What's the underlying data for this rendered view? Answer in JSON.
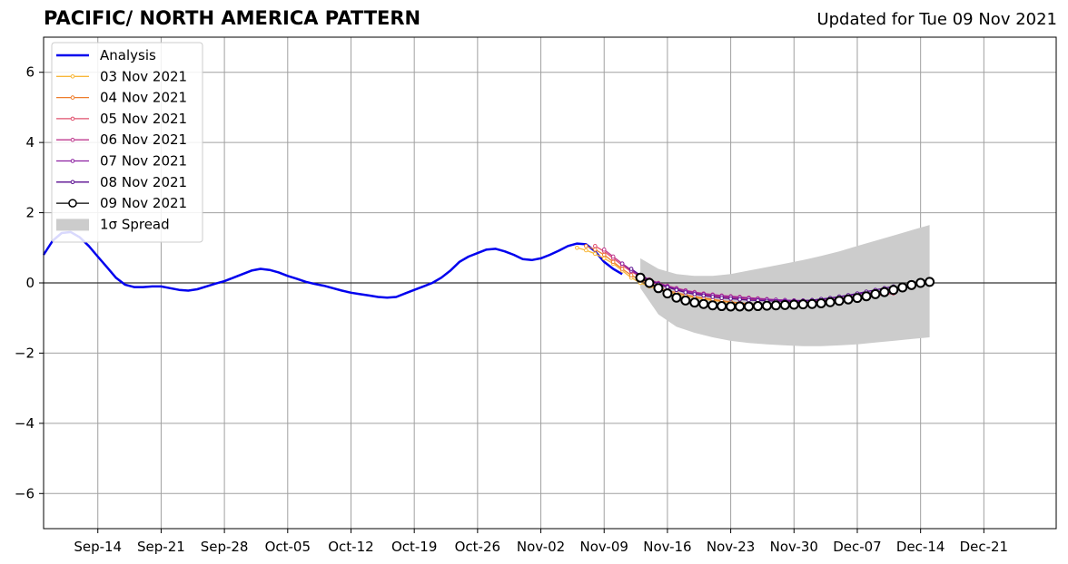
{
  "header": {
    "title": "PACIFIC/ NORTH AMERICA PATTERN",
    "updated": "Updated for Tue 09 Nov 2021"
  },
  "chart_data": {
    "type": "line",
    "title": "PACIFIC/ NORTH AMERICA PATTERN",
    "xlabel": "",
    "ylabel": "",
    "xlim": [
      "2021-09-08",
      "2021-12-29"
    ],
    "ylim": [
      -7,
      7
    ],
    "grid": true,
    "legend_position": "top-left",
    "x_tick_labels": [
      {
        "date": "2021-09-14",
        "label": "Sep-14"
      },
      {
        "date": "2021-09-21",
        "label": "Sep-21"
      },
      {
        "date": "2021-09-28",
        "label": "Sep-28"
      },
      {
        "date": "2021-10-05",
        "label": "Oct-05"
      },
      {
        "date": "2021-10-12",
        "label": "Oct-12"
      },
      {
        "date": "2021-10-19",
        "label": "Oct-19"
      },
      {
        "date": "2021-10-26",
        "label": "Oct-26"
      },
      {
        "date": "2021-11-02",
        "label": "Nov-02"
      },
      {
        "date": "2021-11-09",
        "label": "Nov-09"
      },
      {
        "date": "2021-11-16",
        "label": "Nov-16"
      },
      {
        "date": "2021-11-23",
        "label": "Nov-23"
      },
      {
        "date": "2021-11-30",
        "label": "Nov-30"
      },
      {
        "date": "2021-12-07",
        "label": "Dec-07"
      },
      {
        "date": "2021-12-14",
        "label": "Dec-14"
      },
      {
        "date": "2021-12-21",
        "label": "Dec-21"
      }
    ],
    "y_ticks": [
      6,
      4,
      2,
      0,
      -2,
      -4,
      -6
    ],
    "y_tick_labels": [
      "6",
      "4",
      "2",
      "0",
      "−2",
      "−4",
      "−6"
    ],
    "analysis": {
      "name": "Analysis",
      "color": "#0000ee",
      "points": [
        [
          "2021-09-08",
          0.8
        ],
        [
          "2021-09-09",
          1.2
        ],
        [
          "2021-09-10",
          1.42
        ],
        [
          "2021-09-11",
          1.45
        ],
        [
          "2021-09-12",
          1.3
        ],
        [
          "2021-09-13",
          1.05
        ],
        [
          "2021-09-14",
          0.75
        ],
        [
          "2021-09-15",
          0.45
        ],
        [
          "2021-09-16",
          0.15
        ],
        [
          "2021-09-17",
          -0.05
        ],
        [
          "2021-09-18",
          -0.12
        ],
        [
          "2021-09-19",
          -0.12
        ],
        [
          "2021-09-20",
          -0.1
        ],
        [
          "2021-09-21",
          -0.1
        ],
        [
          "2021-09-22",
          -0.15
        ],
        [
          "2021-09-23",
          -0.2
        ],
        [
          "2021-09-24",
          -0.22
        ],
        [
          "2021-09-25",
          -0.18
        ],
        [
          "2021-09-26",
          -0.1
        ],
        [
          "2021-09-27",
          -0.02
        ],
        [
          "2021-09-28",
          0.05
        ],
        [
          "2021-09-29",
          0.15
        ],
        [
          "2021-09-30",
          0.25
        ],
        [
          "2021-10-01",
          0.35
        ],
        [
          "2021-10-02",
          0.4
        ],
        [
          "2021-10-03",
          0.37
        ],
        [
          "2021-10-04",
          0.3
        ],
        [
          "2021-10-05",
          0.2
        ],
        [
          "2021-10-06",
          0.12
        ],
        [
          "2021-10-07",
          0.03
        ],
        [
          "2021-10-08",
          -0.03
        ],
        [
          "2021-10-09",
          -0.08
        ],
        [
          "2021-10-10",
          -0.15
        ],
        [
          "2021-10-11",
          -0.22
        ],
        [
          "2021-10-12",
          -0.28
        ],
        [
          "2021-10-13",
          -0.32
        ],
        [
          "2021-10-14",
          -0.36
        ],
        [
          "2021-10-15",
          -0.4
        ],
        [
          "2021-10-16",
          -0.42
        ],
        [
          "2021-10-17",
          -0.4
        ],
        [
          "2021-10-18",
          -0.3
        ],
        [
          "2021-10-19",
          -0.2
        ],
        [
          "2021-10-20",
          -0.1
        ],
        [
          "2021-10-21",
          0.0
        ],
        [
          "2021-10-22",
          0.15
        ],
        [
          "2021-10-23",
          0.35
        ],
        [
          "2021-10-24",
          0.6
        ],
        [
          "2021-10-25",
          0.75
        ],
        [
          "2021-10-26",
          0.85
        ],
        [
          "2021-10-27",
          0.95
        ],
        [
          "2021-10-28",
          0.97
        ],
        [
          "2021-10-29",
          0.9
        ],
        [
          "2021-10-30",
          0.8
        ],
        [
          "2021-10-31",
          0.68
        ],
        [
          "2021-11-01",
          0.65
        ],
        [
          "2021-11-02",
          0.7
        ],
        [
          "2021-11-03",
          0.8
        ],
        [
          "2021-11-04",
          0.92
        ],
        [
          "2021-11-05",
          1.05
        ],
        [
          "2021-11-06",
          1.12
        ],
        [
          "2021-11-07",
          1.1
        ],
        [
          "2021-11-08",
          0.9
        ],
        [
          "2021-11-09",
          0.6
        ],
        [
          "2021-11-10",
          0.4
        ],
        [
          "2021-11-11",
          0.25
        ]
      ]
    },
    "forecasts": [
      {
        "name": "03 Nov 2021",
        "color": "#f8b739",
        "start": "2021-11-06",
        "values": [
          1.0,
          0.93,
          0.83,
          0.7,
          0.55,
          0.35,
          0.15,
          0.0,
          -0.1,
          -0.18,
          -0.25,
          -0.32,
          -0.38,
          -0.42,
          -0.46,
          -0.5,
          -0.53,
          -0.56,
          -0.58,
          -0.6,
          -0.62,
          -0.64,
          -0.65,
          -0.66,
          -0.66,
          -0.65,
          -0.63,
          -0.6,
          -0.56,
          -0.52,
          -0.47,
          -0.42,
          -0.37,
          -0.32
        ]
      },
      {
        "name": "04 Nov 2021",
        "color": "#ee7d2c",
        "start": "2021-11-07",
        "values": [
          1.05,
          0.95,
          0.8,
          0.6,
          0.4,
          0.22,
          0.08,
          -0.05,
          -0.15,
          -0.22,
          -0.28,
          -0.34,
          -0.39,
          -0.43,
          -0.47,
          -0.51,
          -0.54,
          -0.57,
          -0.59,
          -0.61,
          -0.63,
          -0.64,
          -0.65,
          -0.66,
          -0.66,
          -0.64,
          -0.61,
          -0.57,
          -0.53,
          -0.48,
          -0.42,
          -0.36,
          -0.3,
          -0.26
        ]
      },
      {
        "name": "05 Nov 2021",
        "color": "#e0506e",
        "start": "2021-11-08",
        "values": [
          1.05,
          0.9,
          0.7,
          0.5,
          0.32,
          0.18,
          0.05,
          -0.05,
          -0.13,
          -0.2,
          -0.26,
          -0.3,
          -0.34,
          -0.37,
          -0.4,
          -0.42,
          -0.44,
          -0.46,
          -0.48,
          -0.5,
          -0.52,
          -0.53,
          -0.54,
          -0.55,
          -0.56,
          -0.56,
          -0.55,
          -0.53,
          -0.5,
          -0.46,
          -0.42,
          -0.37,
          -0.33,
          -0.3
        ]
      },
      {
        "name": "06 Nov 2021",
        "color": "#bf3a8f",
        "start": "2021-11-09",
        "values": [
          0.95,
          0.75,
          0.55,
          0.37,
          0.22,
          0.1,
          0.0,
          -0.08,
          -0.15,
          -0.21,
          -0.26,
          -0.3,
          -0.33,
          -0.36,
          -0.38,
          -0.4,
          -0.42,
          -0.44,
          -0.46,
          -0.48,
          -0.49,
          -0.5,
          -0.51,
          -0.51,
          -0.5,
          -0.48,
          -0.45,
          -0.42,
          -0.38,
          -0.35,
          -0.32,
          -0.3,
          -0.28
        ]
      },
      {
        "name": "07 Nov 2021",
        "color": "#8b1fa0",
        "start": "2021-11-11",
        "values": [
          0.55,
          0.35,
          0.2,
          0.08,
          -0.02,
          -0.1,
          -0.17,
          -0.23,
          -0.28,
          -0.32,
          -0.35,
          -0.38,
          -0.4,
          -0.42,
          -0.44,
          -0.46,
          -0.47,
          -0.48,
          -0.49,
          -0.5,
          -0.5,
          -0.49,
          -0.47,
          -0.44,
          -0.4,
          -0.36,
          -0.32,
          -0.29,
          -0.28,
          -0.27
        ]
      },
      {
        "name": "08 Nov 2021",
        "color": "#5a0e90",
        "start": "2021-11-12",
        "values": [
          0.4,
          0.22,
          0.08,
          -0.03,
          -0.12,
          -0.2,
          -0.27,
          -0.32,
          -0.36,
          -0.4,
          -0.43,
          -0.45,
          -0.47,
          -0.49,
          -0.5,
          -0.51,
          -0.52,
          -0.52,
          -0.52,
          -0.51,
          -0.49,
          -0.46,
          -0.43,
          -0.39,
          -0.35,
          -0.3,
          -0.25,
          -0.2,
          -0.15,
          -0.1
        ]
      },
      {
        "name": "09 Nov 2021",
        "color": "#000000",
        "start": "2021-11-13",
        "values": [
          0.15,
          0.0,
          -0.15,
          -0.3,
          -0.42,
          -0.5,
          -0.56,
          -0.6,
          -0.64,
          -0.66,
          -0.67,
          -0.67,
          -0.67,
          -0.66,
          -0.65,
          -0.64,
          -0.63,
          -0.62,
          -0.61,
          -0.6,
          -0.58,
          -0.55,
          -0.51,
          -0.47,
          -0.43,
          -0.38,
          -0.32,
          -0.26,
          -0.2,
          -0.13,
          -0.06,
          0.0,
          0.03
        ]
      }
    ],
    "spread": {
      "name": "1σ Spread",
      "color": "#cccccc",
      "points": [
        [
          "2021-11-13",
          0.7,
          -0.15
        ],
        [
          "2021-11-15",
          0.4,
          -0.9
        ],
        [
          "2021-11-17",
          0.25,
          -1.25
        ],
        [
          "2021-11-19",
          0.2,
          -1.42
        ],
        [
          "2021-11-21",
          0.2,
          -1.55
        ],
        [
          "2021-11-23",
          0.25,
          -1.65
        ],
        [
          "2021-11-25",
          0.35,
          -1.71
        ],
        [
          "2021-11-27",
          0.45,
          -1.75
        ],
        [
          "2021-11-29",
          0.55,
          -1.78
        ],
        [
          "2021-12-01",
          0.65,
          -1.8
        ],
        [
          "2021-12-03",
          0.77,
          -1.8
        ],
        [
          "2021-12-05",
          0.9,
          -1.78
        ],
        [
          "2021-12-07",
          1.05,
          -1.75
        ],
        [
          "2021-12-09",
          1.2,
          -1.7
        ],
        [
          "2021-12-11",
          1.35,
          -1.65
        ],
        [
          "2021-12-13",
          1.5,
          -1.6
        ],
        [
          "2021-12-15",
          1.65,
          -1.55
        ]
      ]
    }
  }
}
